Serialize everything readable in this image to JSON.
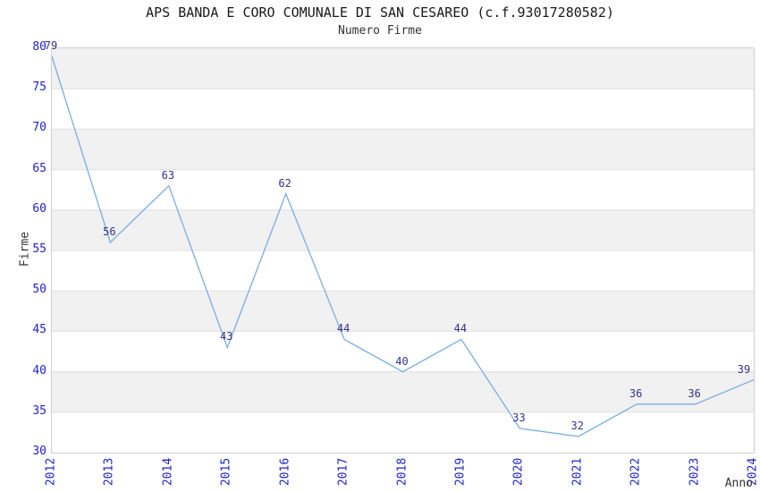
{
  "chart_data": {
    "type": "line",
    "title": "APS BANDA E CORO COMUNALE DI SAN CESAREO (c.f.93017280582)",
    "subtitle": "Numero Firme",
    "xlabel": "Anno",
    "ylabel": "Firme",
    "x": [
      "2012",
      "2013",
      "2014",
      "2015",
      "2016",
      "2017",
      "2018",
      "2019",
      "2020",
      "2021",
      "2022",
      "2023",
      "2024"
    ],
    "series": [
      {
        "name": "Numero Firme",
        "values": [
          79,
          56,
          63,
          43,
          62,
          44,
          40,
          44,
          33,
          32,
          36,
          36,
          39
        ]
      }
    ],
    "ylim": [
      30,
      80
    ],
    "ytick_step": 5,
    "yticks": [
      30,
      35,
      40,
      45,
      50,
      55,
      60,
      65,
      70,
      75,
      80
    ],
    "grid": "horizontal alternating bands, gray band at top",
    "legend_position": "none",
    "point_labels_visible": true,
    "colors": {
      "line": "#7aaee2",
      "tick_label": "#2222cc",
      "point_label": "#333388",
      "band": "#f1f1f1",
      "gridline": "#e0e0e0",
      "plot_border": "#d0d0d0",
      "title_text": "#1a1a1a",
      "axis_label_text": "#333333",
      "background": "#ffffff"
    }
  }
}
